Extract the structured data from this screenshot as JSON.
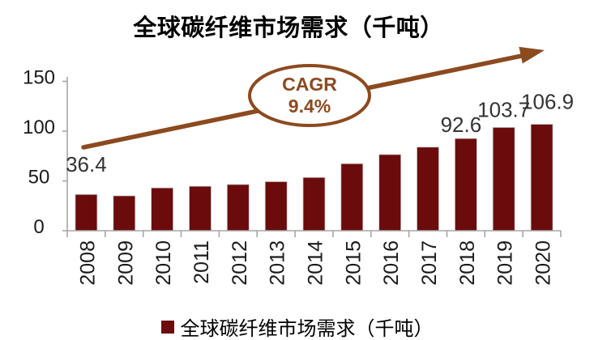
{
  "title": "全球碳纤维市场需求（千吨）",
  "legend": {
    "label": "全球碳纤维市场需求（千吨）"
  },
  "annotation": {
    "line1": "CAGR",
    "line2": "9.4%"
  },
  "colors": {
    "bar": "#6B0B0B",
    "bar_edge": "#C9C9C9",
    "arrow": "#8C4A1F",
    "axis": "#A6A6A6",
    "tick_text": "#1A1A1A",
    "value_label": "#333333"
  },
  "chart_data": {
    "type": "bar",
    "title": "全球碳纤维市场需求（千吨）",
    "series_name": "全球碳纤维市场需求（千吨）",
    "categories": [
      "2008",
      "2009",
      "2010",
      "2011",
      "2012",
      "2013",
      "2014",
      "2015",
      "2016",
      "2017",
      "2018",
      "2019",
      "2020"
    ],
    "values": [
      36.4,
      35.0,
      43.0,
      44.6,
      46.4,
      49.3,
      53.5,
      67.3,
      76.5,
      84.0,
      92.6,
      103.7,
      106.9
    ],
    "value_labels": [
      "36.4",
      "",
      "",
      "",
      "",
      "",
      "",
      "",
      "",
      "",
      "92.6",
      "103.7",
      "106.9"
    ],
    "xlabel": "",
    "ylabel": "",
    "ylim": [
      0,
      150
    ],
    "yticks": [
      0,
      50,
      100,
      150
    ],
    "grid": false,
    "legend_position": "bottom",
    "annotation": "CAGR 9.4%"
  }
}
